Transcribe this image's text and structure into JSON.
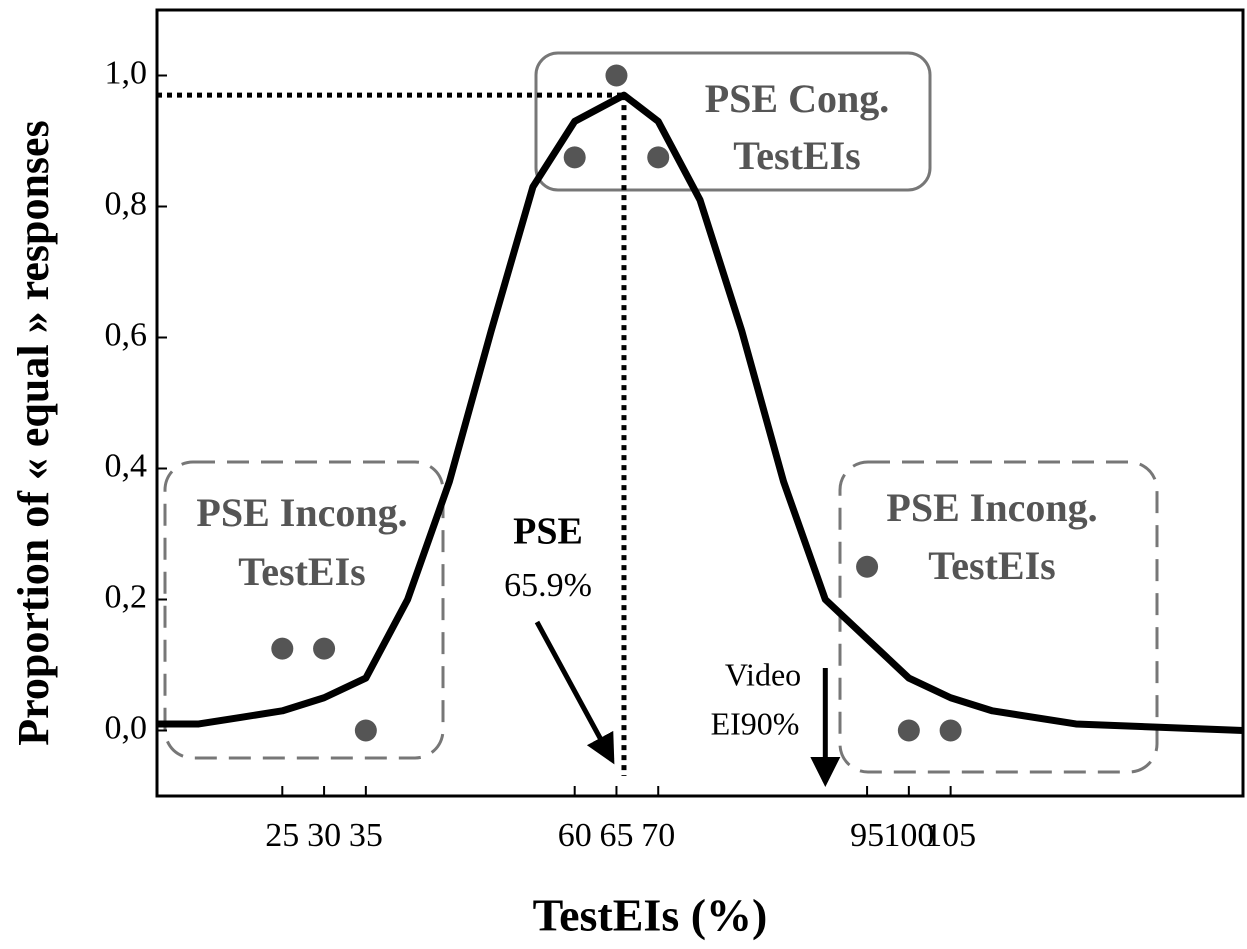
{
  "chart_data": {
    "type": "scatter",
    "x_label": "TestEIs (%)",
    "y_label": "Proportion of « equal » responses",
    "points": {
      "x": [
        25,
        30,
        35,
        60,
        65,
        70,
        95,
        100,
        105
      ],
      "values": [
        0.125,
        0.125,
        0,
        0.875,
        1,
        0.875,
        0.25,
        0,
        0
      ],
      "color": "#555555"
    },
    "curve": {
      "x": [
        10,
        15,
        20,
        25,
        30,
        35,
        40,
        45,
        50,
        55,
        60,
        65.9,
        70,
        75,
        80,
        85,
        90,
        95,
        100,
        105,
        110,
        120,
        130,
        140
      ],
      "values": [
        0.01,
        0.01,
        0.02,
        0.03,
        0.05,
        0.08,
        0.2,
        0.38,
        0.61,
        0.83,
        0.93,
        0.97,
        0.93,
        0.81,
        0.61,
        0.38,
        0.2,
        0.14,
        0.08,
        0.05,
        0.03,
        0.01,
        0.005,
        0
      ],
      "color": "#000000"
    },
    "xlim": [
      10,
      140
    ],
    "ylim": [
      -0.1,
      1.1
    ],
    "xticks": [
      25,
      30,
      35,
      60,
      65,
      70,
      95,
      100,
      105
    ],
    "yticks": [
      {
        "value": 0,
        "label": "0,0"
      },
      {
        "value": 0.2,
        "label": "0,2"
      },
      {
        "value": 0.4,
        "label": "0,4"
      },
      {
        "value": 0.6,
        "label": "0,6"
      },
      {
        "value": 0.8,
        "label": "0,8"
      },
      {
        "value": 1,
        "label": "1,0"
      }
    ],
    "pse": {
      "title": "PSE",
      "label": "65.9%",
      "x": 65.9,
      "y": 0.97
    },
    "video": {
      "lines": [
        "Video",
        "EI90%"
      ],
      "x": 90
    },
    "boxes": {
      "congruent": [
        "PSE Cong.",
        "TestEIs"
      ],
      "incongruent_left": [
        "PSE Incong.",
        "TestEIs"
      ],
      "incongruent_right": [
        "PSE Incong.",
        "TestEIs"
      ]
    }
  }
}
